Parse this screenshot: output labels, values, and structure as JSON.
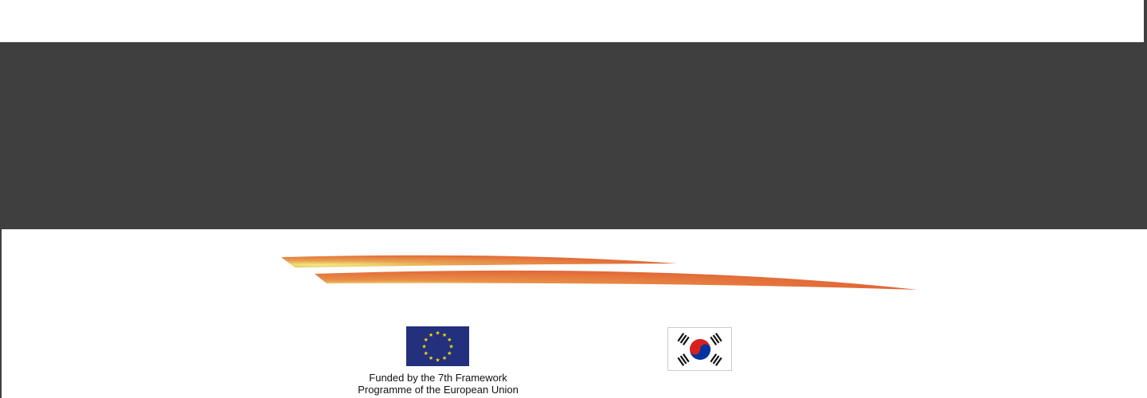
{
  "footer": {
    "eu_flag_icon": "eu-flag",
    "korea_flag_icon": "korea-flag",
    "funding_line1": "Funded by the 7th Framework",
    "funding_line2": "Programme of the European Union"
  },
  "colors": {
    "band": "#3f3f3f",
    "swoosh_start": "#f0ee80",
    "swoosh_mid": "#e88a45",
    "swoosh_end": "#e05a30",
    "eu_blue": "#23307d",
    "eu_star": "#ffdd00"
  }
}
